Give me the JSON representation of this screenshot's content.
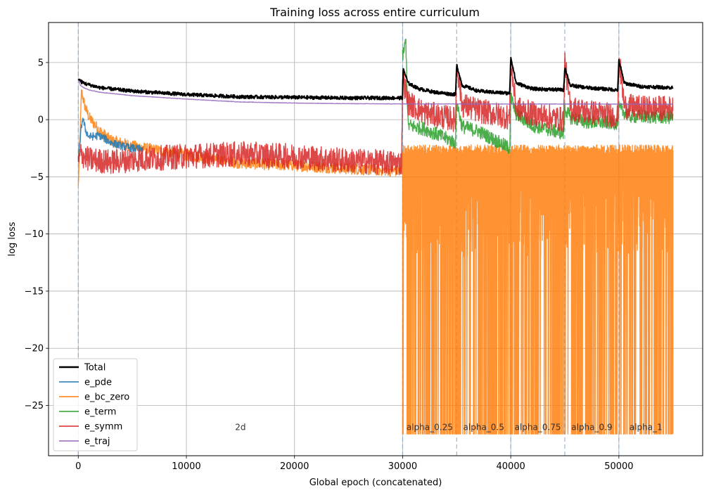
{
  "chart_data": {
    "type": "line",
    "title": "Training loss across entire curriculum",
    "xlabel": "Global epoch (concatenated)",
    "ylabel": "log loss",
    "xlim": [
      -2750,
      57750
    ],
    "ylim": [
      -29.4,
      8.5
    ],
    "x_ticks": [
      0,
      10000,
      20000,
      30000,
      40000,
      50000
    ],
    "x_tick_labels": [
      "0",
      "10000",
      "20000",
      "30000",
      "40000",
      "50000"
    ],
    "y_ticks": [
      5,
      0,
      -5,
      -10,
      -15,
      -20,
      -25
    ],
    "y_tick_labels": [
      "5",
      "0",
      "−5",
      "−10",
      "−15",
      "−20",
      "−25"
    ],
    "grid": true,
    "legend_position": "lower-left",
    "phase_boundaries": [
      0,
      30000,
      35000,
      40000,
      45000,
      50000
    ],
    "phases": [
      {
        "label": "2d",
        "x": 15000,
        "y": -26.9
      },
      {
        "label": "alpha_0.25",
        "x": 32500,
        "y": -26.9
      },
      {
        "label": "alpha_0.5",
        "x": 37500,
        "y": -26.9
      },
      {
        "label": "alpha_0.75",
        "x": 42500,
        "y": -26.9
      },
      {
        "label": "alpha_0.9",
        "x": 47500,
        "y": -26.9
      },
      {
        "label": "alpha_1",
        "x": 52500,
        "y": -26.9
      }
    ],
    "series": [
      {
        "name": "Total",
        "color": "#000000",
        "x": [
          0,
          300,
          800,
          2000,
          5000,
          10000,
          15000,
          20000,
          25000,
          30000,
          30050,
          30500,
          31500,
          33000,
          34900,
          35000,
          35500,
          37000,
          39900,
          40000,
          40500,
          42000,
          44900,
          45000,
          45500,
          47000,
          49900,
          50000,
          50500,
          52000,
          55000
        ],
        "y": [
          3.6,
          3.3,
          3.1,
          2.8,
          2.5,
          2.2,
          2.0,
          1.95,
          1.9,
          1.9,
          4.5,
          3.2,
          2.7,
          2.4,
          2.2,
          4.8,
          3.0,
          2.5,
          2.3,
          5.5,
          3.2,
          2.7,
          2.6,
          4.6,
          3.0,
          2.8,
          2.6,
          5.2,
          3.2,
          2.9,
          2.8
        ]
      },
      {
        "name": "e_pde",
        "color": "#1f77b4",
        "x": [
          0,
          200,
          400,
          700,
          1000,
          2000,
          3000,
          4000,
          5000,
          6000
        ],
        "y": [
          -3.5,
          -1.5,
          0.2,
          -1.0,
          -1.5,
          -1.4,
          -2.0,
          -2.3,
          -2.5,
          -2.6
        ]
      },
      {
        "name": "e_bc_zero",
        "color": "#ff7f0e",
        "x": [
          0,
          300,
          600,
          1000,
          2000,
          3000,
          5000,
          8000,
          10000,
          15000,
          20000,
          25000,
          29900
        ],
        "y": [
          -5.9,
          2.5,
          1.2,
          0.2,
          -1.0,
          -1.8,
          -2.3,
          -2.8,
          -3.1,
          -3.8,
          -4.0,
          -4.3,
          -4.5
        ],
        "noisy_ranges": [
          {
            "x": [
              30000,
              55000
            ],
            "high": -3.0,
            "low": -27.5
          }
        ]
      },
      {
        "name": "e_term",
        "color": "#2ca02c",
        "x": [
          30000,
          30300,
          30500,
          32000,
          34900,
          35000,
          35500,
          37000,
          39900,
          40000,
          40500,
          42000,
          44900,
          45000,
          45500,
          47000,
          49900,
          50000,
          51000,
          55000
        ],
        "y": [
          5.5,
          6.9,
          -0.5,
          -0.8,
          -2.0,
          1.5,
          -0.6,
          -1.0,
          -2.5,
          2.0,
          0.5,
          -0.5,
          -1.2,
          1.0,
          0.2,
          -0.2,
          -0.3,
          1.0,
          0.3,
          0.2
        ]
      },
      {
        "name": "e_symm",
        "color": "#d62728",
        "x": [
          0,
          200,
          1000,
          3000,
          5000,
          10000,
          15000,
          20000,
          25000,
          29900,
          30000,
          30500,
          32000,
          34900,
          35000,
          35500,
          37000,
          39900,
          40000,
          40500,
          42000,
          44900,
          45000,
          45500,
          47000,
          49900,
          50000,
          50500,
          52000,
          55000
        ],
        "y": [
          -4.0,
          -3.0,
          -3.5,
          -3.7,
          -3.5,
          -3.2,
          -3.0,
          -3.2,
          -3.6,
          -3.8,
          3.8,
          1.5,
          0.6,
          0.0,
          5.0,
          1.3,
          0.8,
          0.2,
          5.0,
          1.0,
          0.5,
          0.0,
          5.2,
          1.0,
          0.7,
          0.3,
          5.5,
          1.2,
          1.0,
          1.0
        ]
      },
      {
        "name": "e_traj",
        "color": "#9467bd",
        "x": [
          0,
          200,
          500,
          1000,
          2000,
          5000,
          10000,
          15000,
          20000,
          25000,
          30000,
          35000,
          40000,
          45000,
          50000,
          55000
        ],
        "y": [
          3.6,
          3.0,
          2.8,
          2.6,
          2.4,
          2.1,
          1.8,
          1.55,
          1.45,
          1.4,
          1.38,
          1.38,
          1.37,
          1.37,
          1.36,
          1.35
        ]
      }
    ]
  }
}
